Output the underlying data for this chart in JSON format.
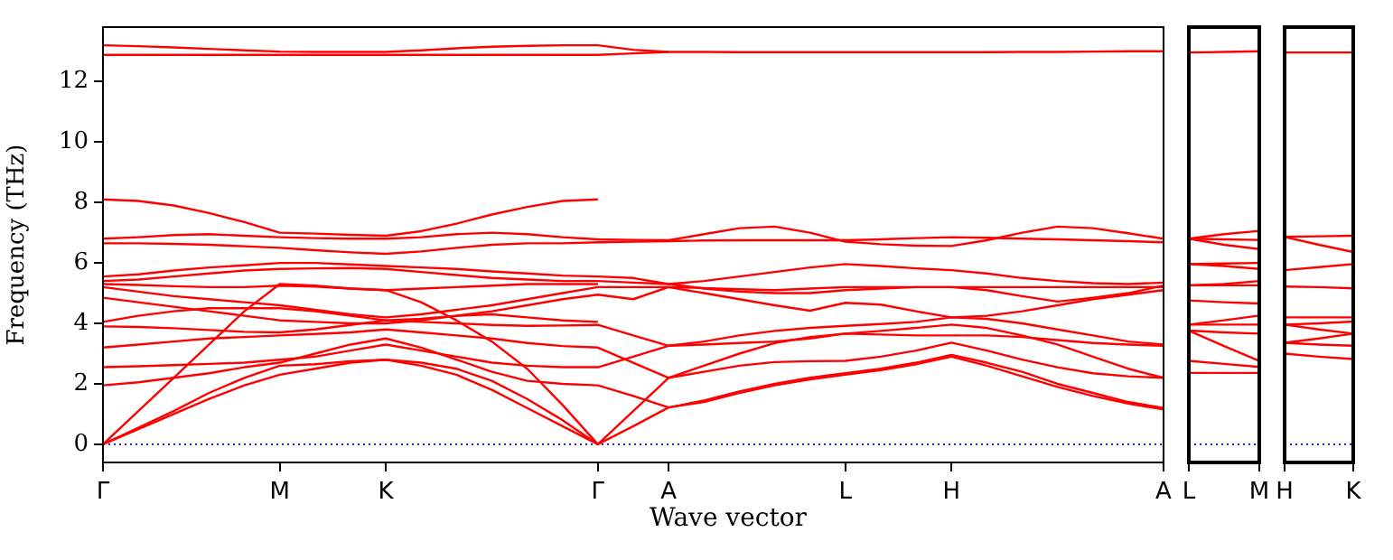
{
  "chart_data": [
    {
      "type": "line",
      "xlabel": "Wave vector",
      "ylabel": "Frequency (THz)",
      "grid": false,
      "legend": false,
      "categories": [
        "Γ",
        null,
        null,
        null,
        null,
        "M",
        null,
        null,
        "K",
        null,
        null,
        null,
        null,
        null,
        "Γ",
        null,
        "A",
        null,
        null,
        null,
        null,
        "L",
        null,
        null,
        "H",
        null,
        null,
        null,
        null,
        null,
        "A"
      ],
      "ylim": [
        -0.6,
        13.8
      ],
      "yticks": [
        0,
        2,
        4,
        6,
        8,
        10,
        12
      ],
      "ref_lines": [
        {
          "axis": "y",
          "value": 0,
          "color": "#0000ff",
          "line_style": "dotted"
        }
      ],
      "series": [
        {
          "color": "#ff0000",
          "values": [
            0,
            0.5,
            1.0,
            1.5,
            1.95,
            2.3,
            2.5,
            2.7,
            2.8,
            2.6,
            2.3,
            1.8,
            1.2,
            0.6,
            0,
            0.6,
            1.22,
            1.45,
            1.75,
            2.0,
            2.2,
            2.35,
            2.5,
            2.7,
            2.96,
            2.7,
            2.4,
            2.0,
            1.7,
            1.4,
            1.2
          ]
        },
        {
          "color": "#ff0000",
          "values": [
            0,
            0.55,
            1.1,
            1.7,
            2.2,
            2.6,
            2.65,
            2.75,
            2.8,
            2.7,
            2.5,
            2.1,
            1.5,
            0.8,
            0,
            1.1,
            2.2,
            2.4,
            2.6,
            2.72,
            2.75,
            2.76,
            2.9,
            3.1,
            3.36,
            3.1,
            2.8,
            2.55,
            2.35,
            2.25,
            2.2
          ]
        },
        {
          "color": "#ff0000",
          "values": [
            0,
            1.1,
            2.2,
            3.3,
            4.4,
            5.3,
            5.25,
            5.15,
            5.1,
            4.7,
            4.1,
            3.4,
            2.5,
            1.3,
            0,
            null,
            null,
            null,
            null,
            null,
            null,
            null,
            null,
            null,
            null,
            null,
            null,
            null,
            null,
            null,
            null
          ]
        },
        {
          "color": "#ff0000",
          "values": [
            1.95,
            2.05,
            2.2,
            2.35,
            2.55,
            2.7,
            3.0,
            3.3,
            3.5,
            3.2,
            2.8,
            2.4,
            2.1,
            2.0,
            1.95,
            1.6,
            1.22,
            1.4,
            1.7,
            1.95,
            2.15,
            2.3,
            2.45,
            2.65,
            2.9,
            2.6,
            2.25,
            1.9,
            1.6,
            1.35,
            1.15
          ]
        },
        {
          "color": "#ff0000",
          "values": [
            2.55,
            2.58,
            2.62,
            2.66,
            2.7,
            2.8,
            2.9,
            3.1,
            3.3,
            3.1,
            2.9,
            2.7,
            2.6,
            2.55,
            2.55,
            2.9,
            3.26,
            3.3,
            3.35,
            3.4,
            3.5,
            3.66,
            3.63,
            3.6,
            3.6,
            3.6,
            3.55,
            3.45,
            3.35,
            3.3,
            3.26
          ]
        },
        {
          "color": "#ff0000",
          "values": [
            3.2,
            3.3,
            3.4,
            3.5,
            3.55,
            3.6,
            3.65,
            3.7,
            3.8,
            3.7,
            3.6,
            3.5,
            3.35,
            3.25,
            3.2,
            2.7,
            2.2,
            2.6,
            3.0,
            3.35,
            3.55,
            3.66,
            3.75,
            3.85,
            3.96,
            3.85,
            3.6,
            3.3,
            2.9,
            2.5,
            2.2
          ]
        },
        {
          "color": "#ff0000",
          "values": [
            3.9,
            3.88,
            3.84,
            3.78,
            3.72,
            3.7,
            3.8,
            3.95,
            4.1,
            4.05,
            4.0,
            3.95,
            3.92,
            3.93,
            3.95,
            3.6,
            3.26,
            3.4,
            3.6,
            3.75,
            3.85,
            3.92,
            3.98,
            4.05,
            4.2,
            4.15,
            4.0,
            3.8,
            3.6,
            3.4,
            3.3
          ]
        },
        {
          "color": "#ff0000",
          "values": [
            4.05,
            4.25,
            4.4,
            4.5,
            4.5,
            4.5,
            4.4,
            4.25,
            4.1,
            4.15,
            4.25,
            4.3,
            4.2,
            4.1,
            4.05,
            null,
            null,
            null,
            null,
            null,
            null,
            null,
            null,
            null,
            null,
            null,
            null,
            null,
            null,
            null,
            null
          ]
        },
        {
          "color": "#ff0000",
          "values": [
            4.85,
            4.7,
            4.55,
            4.4,
            4.25,
            4.1,
            4.05,
            4.0,
            4.0,
            4.1,
            4.25,
            4.4,
            4.6,
            4.8,
            4.95,
            4.8,
            5.2,
            5.0,
            4.8,
            4.6,
            4.42,
            4.68,
            4.62,
            4.4,
            4.2,
            4.25,
            4.4,
            4.6,
            4.8,
            4.95,
            5.1
          ]
        },
        {
          "color": "#ff0000",
          "values": [
            5.2,
            5.05,
            4.9,
            4.8,
            4.7,
            4.6,
            4.45,
            4.3,
            4.2,
            4.3,
            4.45,
            4.6,
            4.8,
            5.0,
            5.2,
            5.2,
            5.2,
            5.17,
            5.13,
            5.1,
            5.15,
            5.2,
            5.2,
            5.2,
            5.2,
            5.2,
            5.2,
            5.2,
            5.2,
            5.2,
            5.2
          ]
        },
        {
          "color": "#ff0000",
          "values": [
            5.3,
            5.27,
            5.23,
            5.2,
            5.2,
            5.25,
            5.22,
            5.15,
            5.1,
            5.15,
            5.2,
            5.25,
            5.3,
            5.3,
            5.3,
            null,
            null,
            null,
            null,
            null,
            null,
            null,
            null,
            null,
            null,
            null,
            null,
            null,
            null,
            null,
            null
          ]
        },
        {
          "color": "#ff0000",
          "values": [
            5.4,
            5.45,
            5.55,
            5.65,
            5.75,
            5.8,
            5.82,
            5.83,
            5.8,
            5.7,
            5.6,
            5.5,
            5.45,
            5.4,
            5.4,
            5.35,
            5.3,
            5.4,
            5.55,
            5.7,
            5.85,
            5.96,
            5.9,
            5.82,
            5.76,
            5.65,
            5.5,
            5.4,
            5.33,
            5.3,
            5.35
          ]
        },
        {
          "color": "#ff0000",
          "values": [
            5.55,
            5.62,
            5.75,
            5.85,
            5.92,
            6.0,
            6.0,
            5.95,
            5.9,
            5.85,
            5.8,
            5.72,
            5.65,
            5.58,
            5.55,
            5.5,
            5.3,
            5.15,
            5.05,
            5.0,
            5.0,
            5.1,
            5.15,
            5.2,
            5.2,
            5.1,
            4.9,
            4.72,
            4.85,
            5.0,
            5.25
          ]
        },
        {
          "color": "#ff0000",
          "values": [
            6.65,
            6.65,
            6.63,
            6.6,
            6.55,
            6.5,
            6.42,
            6.35,
            6.3,
            6.38,
            6.5,
            6.6,
            6.65,
            6.65,
            6.68,
            6.7,
            6.72,
            6.74,
            6.75,
            6.75,
            6.75,
            6.75,
            6.78,
            6.82,
            6.85,
            6.83,
            6.8,
            6.78,
            6.75,
            6.72,
            6.68
          ]
        },
        {
          "color": "#ff0000",
          "values": [
            6.8,
            6.85,
            6.92,
            6.95,
            6.9,
            6.85,
            6.82,
            6.8,
            6.8,
            6.85,
            6.95,
            7.0,
            6.95,
            6.85,
            6.78,
            6.76,
            6.75,
            6.95,
            7.15,
            7.2,
            7.0,
            6.7,
            6.62,
            6.57,
            6.56,
            6.75,
            7.0,
            7.2,
            7.15,
            6.98,
            6.8
          ]
        },
        {
          "color": "#ff0000",
          "values": [
            8.1,
            8.05,
            7.9,
            7.65,
            7.35,
            7.0,
            6.97,
            6.93,
            6.9,
            7.05,
            7.3,
            7.6,
            7.85,
            8.05,
            8.1,
            null,
            null,
            null,
            null,
            null,
            null,
            null,
            null,
            null,
            null,
            null,
            null,
            null,
            null,
            null,
            null
          ]
        },
        {
          "color": "#ff0000",
          "values": [
            12.88,
            12.88,
            12.88,
            12.88,
            12.88,
            12.88,
            12.88,
            12.88,
            12.88,
            12.88,
            12.88,
            12.88,
            12.88,
            12.88,
            12.88,
            12.93,
            12.98,
            null,
            null,
            null,
            null,
            null,
            null,
            null,
            null,
            null,
            null,
            null,
            null,
            null,
            null
          ]
        },
        {
          "color": "#ff0000",
          "values": [
            13.2,
            13.17,
            13.13,
            13.08,
            13.03,
            12.99,
            12.98,
            12.98,
            12.98,
            13.03,
            13.1,
            13.15,
            13.18,
            13.2,
            13.2,
            13.05,
            12.98,
            12.98,
            12.97,
            12.97,
            12.97,
            12.97,
            12.97,
            12.97,
            12.97,
            12.97,
            12.98,
            12.98,
            12.99,
            13.0,
            13.0
          ]
        }
      ]
    },
    {
      "type": "line",
      "grid": false,
      "legend": false,
      "tick_labels": "x",
      "categories": [
        "L",
        null,
        "M"
      ],
      "ylim": [
        -0.6,
        13.8
      ],
      "ref_lines": [
        {
          "axis": "y",
          "value": 0,
          "color": "#0000ff",
          "line_style": "dotted"
        }
      ],
      "series": [
        {
          "color": "#ff0000",
          "values": [
            12.96,
            12.98,
            13.0
          ]
        },
        {
          "color": "#ff0000",
          "values": [
            6.8,
            6.95,
            7.06
          ]
        },
        {
          "color": "#ff0000",
          "values": [
            6.8,
            6.78,
            6.76
          ]
        },
        {
          "color": "#ff0000",
          "values": [
            6.8,
            6.6,
            6.46
          ]
        },
        {
          "color": "#ff0000",
          "values": [
            5.96,
            5.98,
            6.0
          ]
        },
        {
          "color": "#ff0000",
          "values": [
            5.96,
            5.9,
            5.8
          ]
        },
        {
          "color": "#ff0000",
          "values": [
            5.26,
            5.3,
            5.4
          ]
        },
        {
          "color": "#ff0000",
          "values": [
            5.26,
            5.26,
            5.26
          ]
        },
        {
          "color": "#ff0000",
          "values": [
            4.76,
            4.7,
            4.66
          ]
        },
        {
          "color": "#ff0000",
          "values": [
            3.96,
            4.1,
            4.26
          ]
        },
        {
          "color": "#ff0000",
          "values": [
            3.96,
            3.96,
            3.96
          ]
        },
        {
          "color": "#ff0000",
          "values": [
            3.76,
            3.7,
            3.66
          ]
        },
        {
          "color": "#ff0000",
          "values": [
            3.76,
            3.25,
            2.76
          ]
        },
        {
          "color": "#ff0000",
          "values": [
            2.76,
            2.66,
            2.56
          ]
        },
        {
          "color": "#ff0000",
          "values": [
            2.36,
            2.36,
            2.36
          ]
        }
      ]
    },
    {
      "type": "line",
      "grid": false,
      "legend": false,
      "tick_labels": "x",
      "categories": [
        "H",
        null,
        "K"
      ],
      "ylim": [
        -0.6,
        13.8
      ],
      "ref_lines": [
        {
          "axis": "y",
          "value": 0,
          "color": "#0000ff",
          "line_style": "dotted"
        }
      ],
      "series": [
        {
          "color": "#ff0000",
          "values": [
            12.96,
            12.96,
            12.96
          ]
        },
        {
          "color": "#ff0000",
          "values": [
            6.86,
            6.88,
            6.9
          ]
        },
        {
          "color": "#ff0000",
          "values": [
            6.86,
            6.6,
            6.36
          ]
        },
        {
          "color": "#ff0000",
          "values": [
            5.76,
            5.86,
            5.96
          ]
        },
        {
          "color": "#ff0000",
          "values": [
            5.22,
            5.2,
            5.16
          ]
        },
        {
          "color": "#ff0000",
          "values": [
            4.2,
            4.2,
            4.2
          ]
        },
        {
          "color": "#ff0000",
          "values": [
            3.96,
            4.0,
            4.06
          ]
        },
        {
          "color": "#ff0000",
          "values": [
            3.96,
            3.8,
            3.66
          ]
        },
        {
          "color": "#ff0000",
          "values": [
            3.36,
            3.3,
            3.26
          ]
        },
        {
          "color": "#ff0000",
          "values": [
            3.36,
            3.5,
            3.66
          ]
        },
        {
          "color": "#ff0000",
          "values": [
            3.0,
            2.9,
            2.82
          ]
        }
      ]
    }
  ]
}
